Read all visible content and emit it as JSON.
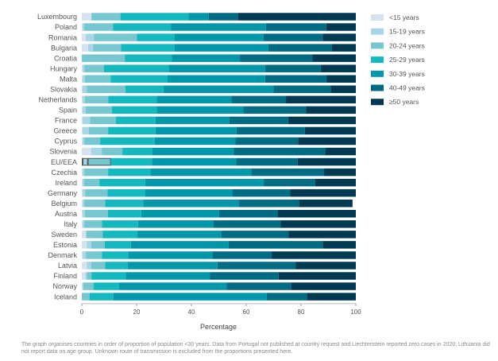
{
  "chart_data": {
    "type": "bar",
    "orientation": "horizontal",
    "stacked": true,
    "title": "",
    "xlabel": "Percentage",
    "ylabel": "",
    "xlim": [
      0,
      100
    ],
    "xticks": [
      0,
      20,
      40,
      60,
      80,
      100
    ],
    "grid": false,
    "legend_position": "right",
    "categories": [
      "Luxembourg",
      "Poland",
      "Romania",
      "Bulgaria",
      "Croatia",
      "Hungary",
      "Malta",
      "Slovakia",
      "Netherlands",
      "Spain",
      "France",
      "Greece",
      "Cyprus",
      "Slovenia",
      "EU/EEA",
      "Czechia",
      "Ireland",
      "Germany",
      "Belgium",
      "Austria",
      "Italy",
      "Sweden",
      "Estonia",
      "Denmark",
      "Latvia",
      "Finland",
      "Norway",
      "Iceland"
    ],
    "highlight_category": "EU/EEA",
    "series": [
      {
        "name": "<15 years",
        "color": "#d6e3ee",
        "values": [
          3.5,
          0.3,
          1.4,
          2.3,
          0,
          0.3,
          0.3,
          0.3,
          0.3,
          0.3,
          0.3,
          0.3,
          0.3,
          3.4,
          0.3,
          0.3,
          0.3,
          0.3,
          0.3,
          0.3,
          0.3,
          1.6,
          1.8,
          0.3,
          1.8,
          1.3,
          0.3,
          0
        ]
      },
      {
        "name": "15-19 years",
        "color": "#a7d6e6",
        "values": [
          0,
          0.6,
          3.1,
          1.9,
          0,
          0.7,
          0.8,
          1.5,
          0.8,
          1.1,
          2.7,
          2.3,
          0.6,
          3.9,
          1.9,
          0.6,
          0.5,
          1.0,
          0.6,
          0.8,
          0.6,
          0,
          1.6,
          1.3,
          1.6,
          0.5,
          0.2,
          0
        ]
      },
      {
        "name": "20-24 years",
        "color": "#76c7d0",
        "values": [
          10.6,
          10.5,
          15.6,
          10.1,
          15.7,
          7.1,
          9.4,
          14.1,
          8.6,
          9.6,
          9.4,
          7.0,
          5.8,
          7.5,
          8.4,
          8.7,
          5.6,
          8.1,
          7.6,
          8.4,
          6.5,
          6.0,
          5.0,
          5.8,
          5.1,
          1.7,
          3.8,
          2.8
        ]
      },
      {
        "name": "25-29 years",
        "color": "#14b9bf",
        "values": [
          24.9,
          21.1,
          13.8,
          19.6,
          17.1,
          23.6,
          20.8,
          13.9,
          17.6,
          16.3,
          14.5,
          17.3,
          19.9,
          11.0,
          15.0,
          15.4,
          16.7,
          13.6,
          13.9,
          12.2,
          13.1,
          12.7,
          9.5,
          9.7,
          8.3,
          12.5,
          9.3,
          8.7
        ]
      },
      {
        "name": "30-39 years",
        "color": "#0097ab",
        "values": [
          7.3,
          34.7,
          32.4,
          34.2,
          24.9,
          35.2,
          35.6,
          40.1,
          27.3,
          31.7,
          27.0,
          29.6,
          29.5,
          29.6,
          30.7,
          36.8,
          43.3,
          31.9,
          35.0,
          28.4,
          27.5,
          30.6,
          35.7,
          30.6,
          32.7,
          30.8,
          39.3,
          56.0
        ]
      },
      {
        "name": "40-49 years",
        "color": "#006c84",
        "values": [
          10.6,
          22.0,
          21.6,
          23.2,
          26.5,
          20.3,
          22.4,
          20.9,
          19.9,
          22.8,
          21.4,
          24.9,
          22.8,
          33.4,
          22.5,
          26.5,
          18.8,
          21.2,
          21.9,
          21.3,
          24.5,
          24.5,
          34.3,
          21.6,
          28.5,
          25.0,
          23.5,
          14.6
        ]
      },
      {
        "name": "≥50 years",
        "color": "#003a52",
        "values": [
          43.1,
          10.8,
          12.1,
          8.7,
          15.8,
          12.8,
          10.7,
          9.2,
          25.5,
          18.2,
          24.7,
          18.6,
          21.1,
          11.2,
          21.2,
          11.7,
          14.8,
          23.9,
          19.5,
          28.6,
          27.5,
          24.6,
          12.1,
          30.7,
          22.0,
          28.2,
          23.6,
          17.9
        ]
      }
    ]
  },
  "footnote": "The graph organises countries in order of proportion of population <30 years. Data from Portugal not published at country request and Liechtenstein reported zero cases in 2020; Lithuania did not report data on age group. Unknown route of transmission is excluded from the proportions presented here."
}
